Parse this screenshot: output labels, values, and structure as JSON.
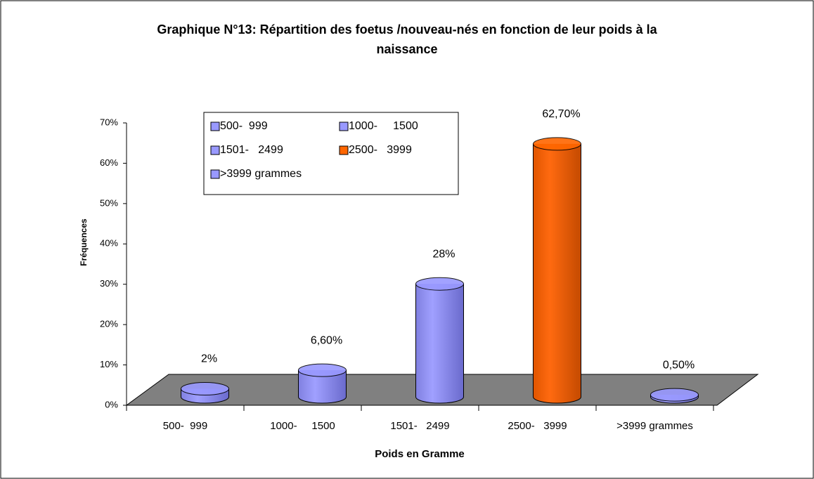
{
  "chart_data": {
    "type": "bar",
    "title": "Graphique N°13: Répartition des foetus /nouveau-nés en fonction de leur poids à la naissance",
    "x_label": "Poids en Gramme",
    "y_label": "Fréquences",
    "categories": [
      "500-  999",
      "1000-     1500",
      "1501-   2499",
      "2500-   3999",
      ">3999 grammes"
    ],
    "values": [
      2,
      6.6,
      28,
      62.7,
      0.5
    ],
    "value_labels": [
      "2%",
      "6,60%",
      "28%",
      "62,70%",
      "0,50%"
    ],
    "colors": [
      "#9999ff",
      "#9999ff",
      "#9999ff",
      "#ff6600",
      "#9999ff"
    ],
    "ylim": [
      0,
      70
    ],
    "yticks": [
      {
        "value": 0,
        "label": "0%"
      },
      {
        "value": 10,
        "label": "10%"
      },
      {
        "value": 20,
        "label": "20%"
      },
      {
        "value": 30,
        "label": "30%"
      },
      {
        "value": 40,
        "label": "40%"
      },
      {
        "value": 50,
        "label": "50%"
      },
      {
        "value": 60,
        "label": "60%"
      },
      {
        "value": 70,
        "label": "70%"
      }
    ],
    "legend": true
  }
}
